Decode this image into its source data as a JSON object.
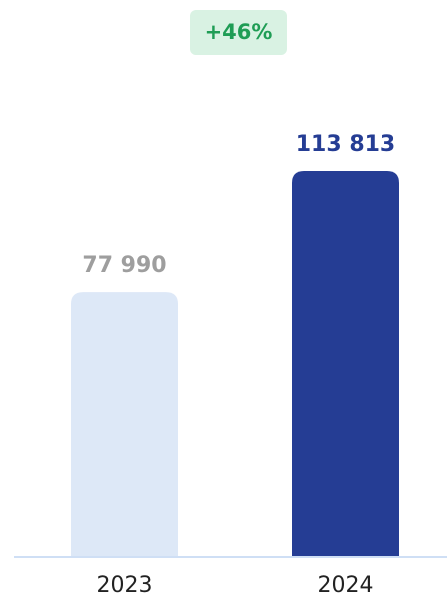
{
  "chart_data": {
    "type": "bar",
    "annotation": "+46%",
    "categories": [
      "2023",
      "2024"
    ],
    "values": [
      77990,
      113813
    ],
    "value_labels": [
      "77 990",
      "113 813"
    ],
    "colors": [
      "#dde8f7",
      "#253d94"
    ],
    "label_colors": [
      "#9e9e9e",
      "#253d94"
    ]
  }
}
